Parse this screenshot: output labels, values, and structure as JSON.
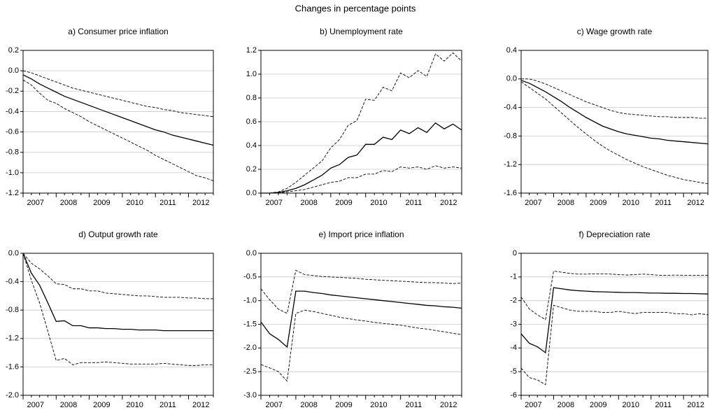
{
  "title": "Changes in percentage points",
  "chart_data": [
    {
      "type": "line",
      "title": "a) Consumer price inflation",
      "categories": [
        "2007",
        null,
        null,
        null,
        "2008",
        null,
        null,
        null,
        "2009",
        null,
        null,
        null,
        "2010",
        null,
        null,
        null,
        "2011",
        null,
        null,
        null,
        "2012",
        null,
        null,
        null
      ],
      "ylim": [
        -1.2,
        0.2
      ],
      "yticks": [
        -1.2,
        {
          "value": -1,
          "label": "-1.0"
        },
        -0.8,
        -0.6,
        -0.4,
        -0.2,
        {
          "value": 0,
          "label": "0.0"
        },
        0.2
      ],
      "series": [
        {
          "color": "#000000",
          "dashed": false,
          "values": [
            -0.04,
            -0.08,
            -0.13,
            -0.17,
            -0.21,
            -0.25,
            -0.28,
            -0.31,
            -0.34,
            -0.37,
            -0.4,
            -0.43,
            -0.46,
            -0.49,
            -0.52,
            -0.55,
            -0.58,
            -0.6,
            -0.63,
            -0.65,
            -0.67,
            -0.69,
            -0.71,
            -0.73
          ]
        },
        {
          "color": "#000000",
          "dashed": true,
          "values": [
            0,
            -0.02,
            -0.05,
            -0.08,
            -0.11,
            -0.14,
            -0.17,
            -0.19,
            -0.21,
            -0.23,
            -0.25,
            -0.27,
            -0.29,
            -0.31,
            -0.33,
            -0.35,
            -0.36,
            -0.38,
            -0.39,
            -0.41,
            -0.42,
            -0.43,
            -0.44,
            -0.45
          ]
        },
        {
          "color": "#000000",
          "dashed": true,
          "values": [
            -0.09,
            -0.14,
            -0.22,
            -0.29,
            -0.32,
            -0.37,
            -0.41,
            -0.45,
            -0.5,
            -0.54,
            -0.58,
            -0.62,
            -0.66,
            -0.7,
            -0.74,
            -0.78,
            -0.83,
            -0.87,
            -0.91,
            -0.95,
            -0.99,
            -1.03,
            -1.05,
            -1.08
          ]
        }
      ]
    },
    {
      "type": "line",
      "title": "b) Unemployment rate",
      "categories": [
        "2007",
        null,
        null,
        null,
        "2008",
        null,
        null,
        null,
        "2009",
        null,
        null,
        null,
        "2010",
        null,
        null,
        null,
        "2011",
        null,
        null,
        null,
        "2012",
        null,
        null,
        null
      ],
      "ylim": [
        0,
        1.2
      ],
      "yticks": [
        {
          "value": 0,
          "label": "0.0"
        },
        0.2,
        0.4,
        0.6,
        0.8,
        {
          "value": 1,
          "label": "1.0"
        },
        1.2
      ],
      "series": [
        {
          "color": "#000000",
          "dashed": false,
          "values": [
            0,
            0,
            0.005,
            0.02,
            0.04,
            0.07,
            0.11,
            0.15,
            0.21,
            0.24,
            0.3,
            0.32,
            0.41,
            0.41,
            0.47,
            0.45,
            0.53,
            0.5,
            0.55,
            0.51,
            0.59,
            0.54,
            0.58,
            0.53
          ]
        },
        {
          "color": "#000000",
          "dashed": true,
          "values": [
            0,
            0,
            0.01,
            0.04,
            0.09,
            0.15,
            0.21,
            0.27,
            0.38,
            0.45,
            0.57,
            0.61,
            0.79,
            0.78,
            0.89,
            0.86,
            1.01,
            0.97,
            1.03,
            0.98,
            1.17,
            1.11,
            1.18,
            1.11
          ]
        },
        {
          "color": "#000000",
          "dashed": true,
          "values": [
            0,
            0,
            0,
            0.01,
            0.02,
            0.03,
            0.05,
            0.07,
            0.09,
            0.1,
            0.13,
            0.13,
            0.16,
            0.16,
            0.19,
            0.18,
            0.22,
            0.21,
            0.22,
            0.2,
            0.23,
            0.21,
            0.22,
            0.21
          ]
        }
      ]
    },
    {
      "type": "line",
      "title": "c) Wage growth rate",
      "categories": [
        "2007",
        null,
        null,
        null,
        "2008",
        null,
        null,
        null,
        "2009",
        null,
        null,
        null,
        "2010",
        null,
        null,
        null,
        "2011",
        null,
        null,
        null,
        "2012",
        null,
        null,
        null
      ],
      "ylim": [
        -1.6,
        0.4
      ],
      "yticks": [
        -1.6,
        -1.2,
        -0.8,
        -0.4,
        {
          "value": 0,
          "label": "0.0"
        },
        0.4
      ],
      "series": [
        {
          "color": "#000000",
          "dashed": false,
          "values": [
            -0.02,
            -0.06,
            -0.12,
            -0.18,
            -0.25,
            -0.32,
            -0.4,
            -0.47,
            -0.54,
            -0.6,
            -0.66,
            -0.7,
            -0.74,
            -0.77,
            -0.79,
            -0.81,
            -0.83,
            -0.84,
            -0.86,
            -0.87,
            -0.88,
            -0.89,
            -0.9,
            -0.91
          ]
        },
        {
          "color": "#000000",
          "dashed": true,
          "values": [
            0,
            0,
            -0.03,
            -0.07,
            -0.12,
            -0.17,
            -0.22,
            -0.27,
            -0.32,
            -0.36,
            -0.4,
            -0.44,
            -0.47,
            -0.49,
            -0.5,
            -0.51,
            -0.52,
            -0.53,
            -0.53,
            -0.54,
            -0.54,
            -0.54,
            -0.55,
            -0.55
          ]
        },
        {
          "color": "#000000",
          "dashed": true,
          "values": [
            -0.04,
            -0.12,
            -0.2,
            -0.28,
            -0.38,
            -0.48,
            -0.58,
            -0.68,
            -0.77,
            -0.86,
            -0.94,
            -1.01,
            -1.07,
            -1.13,
            -1.18,
            -1.23,
            -1.27,
            -1.31,
            -1.35,
            -1.38,
            -1.41,
            -1.43,
            -1.45,
            -1.47
          ]
        }
      ]
    },
    {
      "type": "line",
      "title": "d) Output growth rate",
      "categories": [
        "2007",
        null,
        null,
        null,
        "2008",
        null,
        null,
        null,
        "2009",
        null,
        null,
        null,
        "2010",
        null,
        null,
        null,
        "2011",
        null,
        null,
        null,
        "2012",
        null,
        null,
        null
      ],
      "ylim": [
        -2,
        0
      ],
      "yticks": [
        {
          "value": -2,
          "label": "-2.0"
        },
        -1.6,
        -1.2,
        -0.8,
        -0.4,
        {
          "value": 0,
          "label": "0.0"
        }
      ],
      "series": [
        {
          "color": "#000000",
          "dashed": false,
          "values": [
            0,
            -0.28,
            -0.45,
            -0.7,
            -0.96,
            -0.95,
            -1.02,
            -1.02,
            -1.05,
            -1.05,
            -1.06,
            -1.06,
            -1.07,
            -1.07,
            -1.08,
            -1.08,
            -1.08,
            -1.09,
            -1.09,
            -1.09,
            -1.09,
            -1.09,
            -1.09,
            -1.09
          ]
        },
        {
          "color": "#000000",
          "dashed": true,
          "values": [
            0,
            -0.14,
            -0.22,
            -0.32,
            -0.43,
            -0.44,
            -0.5,
            -0.5,
            -0.53,
            -0.53,
            -0.56,
            -0.57,
            -0.58,
            -0.59,
            -0.6,
            -0.6,
            -0.61,
            -0.62,
            -0.62,
            -0.62,
            -0.63,
            -0.63,
            -0.64,
            -0.64
          ]
        },
        {
          "color": "#000000",
          "dashed": true,
          "values": [
            0,
            -0.38,
            -0.7,
            -1.1,
            -1.51,
            -1.48,
            -1.57,
            -1.54,
            -1.54,
            -1.54,
            -1.53,
            -1.54,
            -1.55,
            -1.56,
            -1.56,
            -1.56,
            -1.56,
            -1.55,
            -1.56,
            -1.57,
            -1.58,
            -1.58,
            -1.57,
            -1.57
          ]
        }
      ]
    },
    {
      "type": "line",
      "title": "e) Import price inflation",
      "categories": [
        "2007",
        null,
        null,
        null,
        "2008",
        null,
        null,
        null,
        "2009",
        null,
        null,
        null,
        "2010",
        null,
        null,
        null,
        "2011",
        null,
        null,
        null,
        "2012",
        null,
        null,
        null
      ],
      "ylim": [
        -3,
        0
      ],
      "yticks": [
        {
          "value": -3,
          "label": "-3.0"
        },
        -2.5,
        {
          "value": -2,
          "label": "-2.0"
        },
        -1.5,
        {
          "value": -1,
          "label": "-1.0"
        },
        -0.5,
        {
          "value": 0,
          "label": "0.0"
        }
      ],
      "series": [
        {
          "color": "#000000",
          "dashed": false,
          "values": [
            -1.45,
            -1.7,
            -1.82,
            -1.98,
            -0.8,
            -0.8,
            -0.83,
            -0.85,
            -0.88,
            -0.9,
            -0.92,
            -0.94,
            -0.96,
            -0.98,
            -1,
            -1.02,
            -1.04,
            -1.06,
            -1.08,
            -1.1,
            -1.11,
            -1.13,
            -1.14,
            -1.16
          ]
        },
        {
          "color": "#000000",
          "dashed": true,
          "values": [
            -0.75,
            -0.98,
            -1.18,
            -1.27,
            -0.36,
            -0.45,
            -0.47,
            -0.49,
            -0.5,
            -0.51,
            -0.52,
            -0.53,
            -0.55,
            -0.56,
            -0.57,
            -0.58,
            -0.59,
            -0.6,
            -0.61,
            -0.62,
            -0.62,
            -0.63,
            -0.64,
            -0.63
          ]
        },
        {
          "color": "#000000",
          "dashed": true,
          "values": [
            -2.35,
            -2.42,
            -2.5,
            -2.7,
            -1.27,
            -1.2,
            -1.23,
            -1.27,
            -1.31,
            -1.35,
            -1.38,
            -1.41,
            -1.43,
            -1.46,
            -1.48,
            -1.5,
            -1.52,
            -1.55,
            -1.58,
            -1.6,
            -1.63,
            -1.66,
            -1.69,
            -1.72
          ]
        }
      ]
    },
    {
      "type": "line",
      "title": "f) Depreciation rate",
      "categories": [
        "2007",
        null,
        null,
        null,
        "2008",
        null,
        null,
        null,
        "2009",
        null,
        null,
        null,
        "2010",
        null,
        null,
        null,
        "2011",
        null,
        null,
        null,
        "2012",
        null,
        null,
        null
      ],
      "ylim": [
        -6,
        0
      ],
      "yticks": [
        -6,
        -5,
        -4,
        -3,
        -2,
        -1,
        0
      ],
      "series": [
        {
          "color": "#000000",
          "dashed": false,
          "values": [
            -3.4,
            -3.8,
            -3.95,
            -4.2,
            -1.45,
            -1.5,
            -1.55,
            -1.58,
            -1.6,
            -1.62,
            -1.63,
            -1.64,
            -1.65,
            -1.66,
            -1.66,
            -1.67,
            -1.68,
            -1.68,
            -1.69,
            -1.69,
            -1.7,
            -1.7,
            -1.71,
            -1.72
          ]
        },
        {
          "color": "#000000",
          "dashed": true,
          "values": [
            -1.85,
            -2.35,
            -2.6,
            -2.8,
            -0.75,
            -0.8,
            -0.85,
            -0.88,
            -0.88,
            -0.87,
            -0.87,
            -0.88,
            -0.9,
            -0.92,
            -0.9,
            -0.88,
            -0.9,
            -0.93,
            -0.93,
            -0.92,
            -0.93,
            -0.93,
            -0.93,
            -0.93
          ]
        },
        {
          "color": "#000000",
          "dashed": true,
          "values": [
            -4.85,
            -5.25,
            -5.35,
            -5.55,
            -2.2,
            -2.3,
            -2.4,
            -2.45,
            -2.45,
            -2.45,
            -2.5,
            -2.5,
            -2.45,
            -2.5,
            -2.55,
            -2.5,
            -2.5,
            -2.5,
            -2.5,
            -2.55,
            -2.55,
            -2.6,
            -2.55,
            -2.6
          ]
        }
      ]
    }
  ]
}
